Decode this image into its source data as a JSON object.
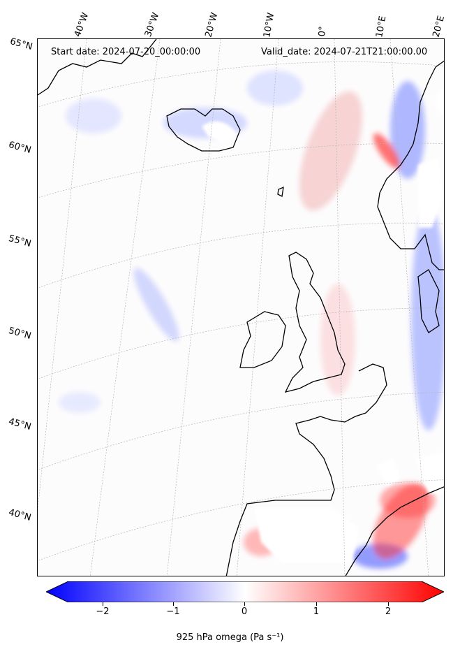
{
  "header": {
    "start_date": "Start date: 2024-07-20_00:00:00",
    "valid_date": "Valid_date: 2024-07-21T21:00:00.00"
  },
  "map": {
    "field": "omega",
    "level": "925 hPa",
    "colormap": "bwr",
    "longitude_labels": [
      "40°W",
      "30°W",
      "20°W",
      "10°W",
      "0°",
      "10°E",
      "20°E"
    ],
    "latitude_labels": [
      "65°N",
      "60°N",
      "55°N",
      "50°N",
      "45°N",
      "40°N"
    ],
    "gridlines": true
  },
  "colorbar": {
    "ticks": [
      "−2",
      "−1",
      "0",
      "1",
      "2"
    ],
    "min": -2.5,
    "max": 2.5,
    "extend": "both",
    "min_color": "#0000ff",
    "mid_color": "#ffffff",
    "max_color": "#ff0000",
    "title": "925 hPa omega (Pa s⁻¹)"
  }
}
